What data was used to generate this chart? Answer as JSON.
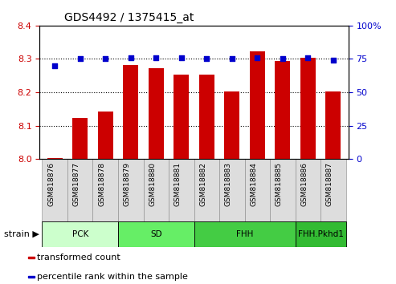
{
  "title": "GDS4492 / 1375415_at",
  "samples": [
    "GSM818876",
    "GSM818877",
    "GSM818878",
    "GSM818879",
    "GSM818880",
    "GSM818881",
    "GSM818882",
    "GSM818883",
    "GSM818884",
    "GSM818885",
    "GSM818886",
    "GSM818887"
  ],
  "transformed_count": [
    8.003,
    8.123,
    8.143,
    8.283,
    8.273,
    8.253,
    8.253,
    8.203,
    8.323,
    8.293,
    8.303,
    8.203
  ],
  "percentile_rank": [
    70,
    75,
    75,
    76,
    76,
    76,
    75,
    75,
    76,
    75,
    76,
    74
  ],
  "ylim_left": [
    8.0,
    8.4
  ],
  "ylim_right": [
    0,
    100
  ],
  "yticks_left": [
    8.0,
    8.1,
    8.2,
    8.3,
    8.4
  ],
  "yticks_right": [
    0,
    25,
    50,
    75,
    100
  ],
  "bar_color": "#cc0000",
  "dot_color": "#0000cc",
  "bar_width": 0.6,
  "groups_data": [
    {
      "label": "PCK",
      "start": 0,
      "end": 2,
      "color": "#ccffcc"
    },
    {
      "label": "SD",
      "start": 3,
      "end": 5,
      "color": "#66ee66"
    },
    {
      "label": "FHH",
      "start": 6,
      "end": 9,
      "color": "#44cc44"
    },
    {
      "label": "FHH.Pkhd1",
      "start": 10,
      "end": 11,
      "color": "#33bb33"
    }
  ],
  "legend_items": [
    {
      "label": "transformed count",
      "color": "#cc0000"
    },
    {
      "label": "percentile rank within the sample",
      "color": "#0000cc"
    }
  ],
  "tick_label_color": "#cc0000",
  "right_tick_color": "#0000cc",
  "base": 8.0,
  "gridline_y": [
    8.1,
    8.2,
    8.3
  ],
  "tickbox_color": "#dddddd"
}
